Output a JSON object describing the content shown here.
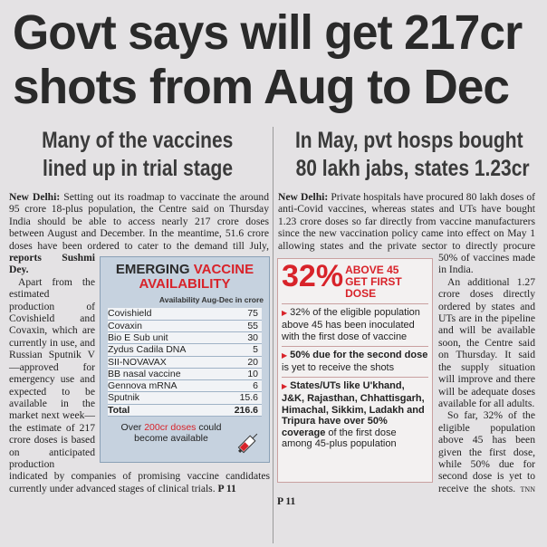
{
  "headline": {
    "lines": [
      "Govt says will get 217cr",
      "shots from Aug to Dec"
    ]
  },
  "left_story": {
    "subhead": {
      "lines": [
        "Many of the vaccines",
        "lined up in trial stage"
      ]
    },
    "paragraphs": [
      [
        {
          "text": "New Delhi:",
          "bold": true
        },
        {
          "text": "Setting out its roadmap to vaccinate the around 95 crore 18-plus population, the Centre said on Thursday India should be able to access nearly 217 crore doses between August and December. In the meantime, 51.6 crore doses have been ordered to cater to the demand till July,"
        },
        {
          "text": "reports Sushmi Dey.",
          "bold": true
        }
      ],
      [
        {
          "text": "Apart from the estimated production of Covishield and Covaxin, which are currently in use, and Russian Sputnik V—approved for emergency use and expected to be available in the market next week—the estimate of 217 crore doses is based on anticipated production indicated by companies of promising vaccine candidates currently under advanced stages of clinical trials."
        },
        {
          "text": "P 11",
          "bold": true
        }
      ]
    ],
    "table": {
      "title": [
        {
          "text": "EMERGING",
          "color": "#2b2b2b"
        },
        {
          "text": "VACCINE AVAILABILITY",
          "color": "#d8232a"
        }
      ],
      "header": "Availability Aug-Dec in crore",
      "rows": [
        [
          "Covishield",
          75
        ],
        [
          "Covaxin",
          55
        ],
        [
          "Bio E Sub unit",
          30
        ],
        [
          "Zydus Cadila DNA",
          5
        ],
        [
          "SII-NOVAVAX",
          20
        ],
        [
          "BB nasal vaccine",
          10
        ],
        [
          "Gennova mRNA",
          6
        ],
        [
          "Sputnik",
          15.6
        ]
      ],
      "total": [
        "Total",
        216.6
      ],
      "note": [
        {
          "text": "Over"
        },
        {
          "text": "200cr doses",
          "color": "#d8232a"
        },
        {
          "text": "could become available"
        }
      ]
    }
  },
  "right_story": {
    "subhead": {
      "lines": [
        "In May, pvt hosps bought",
        "80 lakh jabs, states 1.23cr"
      ]
    },
    "paragraphs": [
      [
        {
          "text": "New Delhi:",
          "bold": true
        },
        {
          "text": "Private hospitals have procured 80 lakh doses of anti-Covid vaccines, whereas states and UTs have bought 1.23 crore doses so far directly from vaccine manufacturers since the new vaccination policy came into effect on May 1 allowing states and the private sector to directly procure 50% of vaccines made in India."
        }
      ],
      [
        {
          "text": "An additional 1.27 crore doses directly ordered by states and UTs are in the pipeline and will be available soon, the Centre said on Thursday. It said the supply situation will improve and there will be adequate doses available for all adults."
        }
      ],
      [
        {
          "text": "So far, 32% of the eligible population above 45 has been given the first dose, while 50% due for second dose is yet to receive the shots."
        },
        {
          "text": "TNN",
          "small": true
        },
        {
          "text": "P 11",
          "bold": true
        }
      ]
    ],
    "box": {
      "figure": "32%",
      "label": "ABOVE 45 GET FIRST DOSE",
      "bullets": [
        [
          {
            "text": "32% of the eligible population above 45 has been inoculated with the first dose of vaccine"
          }
        ],
        [
          {
            "text": "50% due for the second dose",
            "bold": true
          },
          {
            "text": "is yet to receive the shots"
          }
        ],
        [
          {
            "text": "States/UTs like U'khand, J&K, Rajasthan, Chhattisgarh, Himachal, Sikkim, Ladakh and Tripura have over 50% coverage",
            "bold": true
          },
          {
            "text": "of the first dose among 45-plus population"
          }
        ]
      ]
    }
  }
}
